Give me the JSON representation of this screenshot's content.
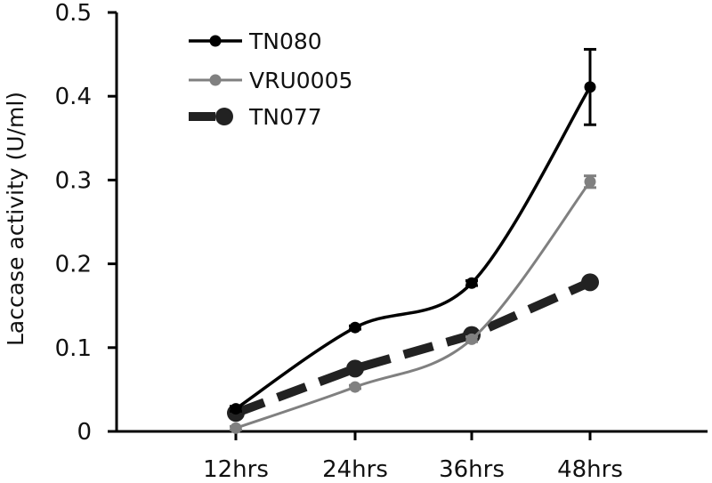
{
  "chart_data": {
    "type": "line",
    "title": "",
    "xlabel": "",
    "ylabel": "Laccase activity (U/ml)",
    "categories": [
      "12hrs",
      "24hrs",
      "36hrs",
      "48hrs"
    ],
    "ylim": [
      0,
      0.5
    ],
    "yticks": [
      0,
      0.1,
      0.2,
      0.3,
      0.4,
      0.5
    ],
    "ytick_labels": [
      "0",
      "0.1",
      "0.2",
      "0.3",
      "0.4",
      "0.5"
    ],
    "grid": false,
    "legend_position": "top-left",
    "series": [
      {
        "name": "TN080",
        "values": [
          0.027,
          0.124,
          0.177,
          0.411
        ],
        "errors": [
          0.003,
          0.002,
          0.003,
          0.045
        ],
        "color": "#000000",
        "style": "solid",
        "smooth": true
      },
      {
        "name": "VRU0005",
        "values": [
          0.004,
          0.053,
          0.11,
          0.298
        ],
        "errors": [
          0.002,
          0.002,
          0.003,
          0.007
        ],
        "color": "#808080",
        "style": "solid",
        "smooth": true
      },
      {
        "name": "TN077",
        "values": [
          0.022,
          0.075,
          0.115,
          0.178
        ],
        "errors": [
          0,
          0,
          0,
          0
        ],
        "color": "#222222",
        "style": "dashed",
        "smooth": false
      }
    ]
  }
}
